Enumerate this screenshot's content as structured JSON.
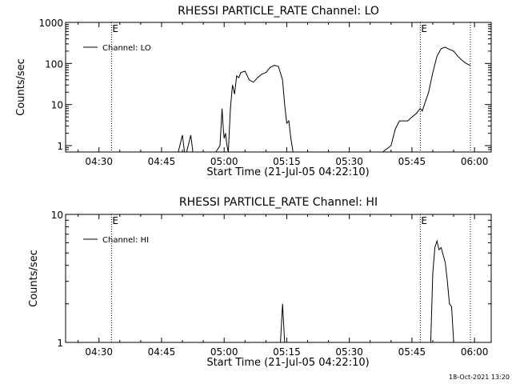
{
  "footer_timestamp": "18-Oct-2021 13:20",
  "chart_data": [
    {
      "type": "line",
      "title": "RHESSI PARTICLE_RATE Channel: LO",
      "xlabel": "Start Time (21-Jul-05 04:22:10)",
      "ylabel": "Counts/sec",
      "y_scale": "log",
      "ylim": [
        0.7,
        1000
      ],
      "xlim": [
        "04:22",
        "06:04"
      ],
      "x_ticks": [
        "04:30",
        "04:45",
        "05:00",
        "05:15",
        "05:30",
        "05:45",
        "06:00"
      ],
      "y_ticks": [
        "1",
        "10",
        "100",
        "1000"
      ],
      "legend": {
        "position": "top-left",
        "label": "Channel: LO"
      },
      "event_markers": [
        {
          "time": "04:33",
          "label": "E"
        },
        {
          "time": "05:47",
          "label": "E"
        },
        {
          "time": "05:59",
          "label": ""
        }
      ],
      "series": [
        {
          "x": [
            "04:29",
            "04:31",
            "04:34",
            "04:37",
            "04:40",
            "04:43",
            "04:46",
            "04:49",
            "04:50",
            "04:50:30",
            "04:51",
            "04:52",
            "04:52:30",
            "04:53",
            "04:53:30",
            "04:54",
            "04:56",
            "04:58",
            "04:59",
            "04:59:30",
            "04:59:45",
            "05:00",
            "05:00:20",
            "05:00:40",
            "05:01",
            "05:01:30",
            "05:02",
            "05:02:30",
            "05:03",
            "05:03:30",
            "05:04",
            "05:05",
            "05:06",
            "05:07",
            "05:08",
            "05:09",
            "05:10",
            "05:11",
            "05:12",
            "05:13",
            "05:14",
            "05:14:30",
            "05:15",
            "05:15:30",
            "05:16",
            "05:16:30",
            "05:17",
            "05:18",
            "05:19",
            "05:25",
            "05:32",
            "05:38",
            "05:40",
            "05:41",
            "05:42",
            "05:43",
            "05:44",
            "05:45",
            "05:46",
            "05:47",
            "05:47:30",
            "05:48",
            "05:49",
            "05:50",
            "05:51",
            "05:52",
            "05:53",
            "05:54",
            "05:55",
            "05:56",
            "05:57",
            "05:58",
            "05:59"
          ],
          "y": [
            0.7,
            0.7,
            0.7,
            0.7,
            0.7,
            0.7,
            0.7,
            0.7,
            1.8,
            0.7,
            0.7,
            1.8,
            0.7,
            0.7,
            0.7,
            0.7,
            0.7,
            0.7,
            1.0,
            8.0,
            3.0,
            1.5,
            2.0,
            1.0,
            0.7,
            8.0,
            30.0,
            18.0,
            50.0,
            45.0,
            60.0,
            65.0,
            40.0,
            35.0,
            45.0,
            55.0,
            60.0,
            80.0,
            90.0,
            85.0,
            40.0,
            10.0,
            3.5,
            4.0,
            1.5,
            0.7,
            0.7,
            0.7,
            0.7,
            0.7,
            0.7,
            0.7,
            1.0,
            2.5,
            4.0,
            4.0,
            4.0,
            5.0,
            6.0,
            8.0,
            7.0,
            10.0,
            20.0,
            60.0,
            150.0,
            230.0,
            250.0,
            220.0,
            200.0,
            150.0,
            120.0,
            100.0,
            90.0
          ]
        }
      ]
    },
    {
      "type": "line",
      "title": "RHESSI PARTICLE_RATE Channel: HI",
      "xlabel": "Start Time (21-Jul-05 04:22:10)",
      "ylabel": "Counts/sec",
      "y_scale": "log",
      "ylim": [
        1,
        10
      ],
      "xlim": [
        "04:22",
        "06:04"
      ],
      "x_ticks": [
        "04:30",
        "04:45",
        "05:00",
        "05:15",
        "05:30",
        "05:45",
        "06:00"
      ],
      "y_ticks": [
        "1",
        "10"
      ],
      "legend": {
        "position": "top-left",
        "label": "Channel: HI"
      },
      "event_markers": [
        {
          "time": "04:33",
          "label": "E"
        },
        {
          "time": "05:47",
          "label": "E"
        },
        {
          "time": "05:59",
          "label": ""
        }
      ],
      "series": [
        {
          "x": [
            "04:22",
            "05:13",
            "05:13:30",
            "05:14",
            "05:14:30",
            "05:15",
            "05:49",
            "05:49:30",
            "05:50",
            "05:50:30",
            "05:51",
            "05:51:30",
            "05:52",
            "05:52:30",
            "05:53",
            "05:53:30",
            "05:54",
            "05:54:30",
            "05:55",
            "05:55:30"
          ],
          "y": [
            0.9,
            0.9,
            1.0,
            2.0,
            1.0,
            0.9,
            0.9,
            1.0,
            3.5,
            5.5,
            6.2,
            5.3,
            5.5,
            4.8,
            4.2,
            3.0,
            2.0,
            1.9,
            1.0,
            0.9
          ]
        }
      ]
    }
  ]
}
